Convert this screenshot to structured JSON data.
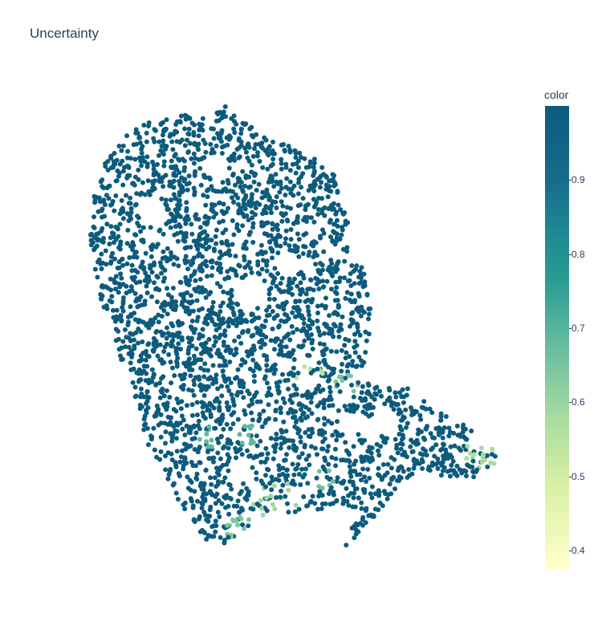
{
  "title": "Uncertainty",
  "colors": {
    "dark": "#0d5b7d",
    "mid": "#1f8a94",
    "light": "#ffffcc",
    "text": "#2a3f5f"
  },
  "colorbar": {
    "title": "color",
    "ticks": [
      "0.4",
      "0.5",
      "0.6",
      "0.7",
      "0.8",
      "0.9"
    ],
    "range": [
      0.375,
      1.0
    ]
  },
  "chart_data": {
    "type": "scatter",
    "title": "Uncertainty",
    "xlabel": "",
    "ylabel": "",
    "grid": false,
    "colorscale": "YlGnBu",
    "color_range": [
      0.375,
      1.0
    ],
    "colorbar_title": "color",
    "colorbar_ticks": [
      0.4,
      0.5,
      0.6,
      0.7,
      0.8,
      0.9
    ],
    "series": [
      {
        "shape": "embedding cloud",
        "values_approx": "mostly ~1.0 with low-value patches (~0.4-0.7) in the lower region"
      }
    ]
  }
}
